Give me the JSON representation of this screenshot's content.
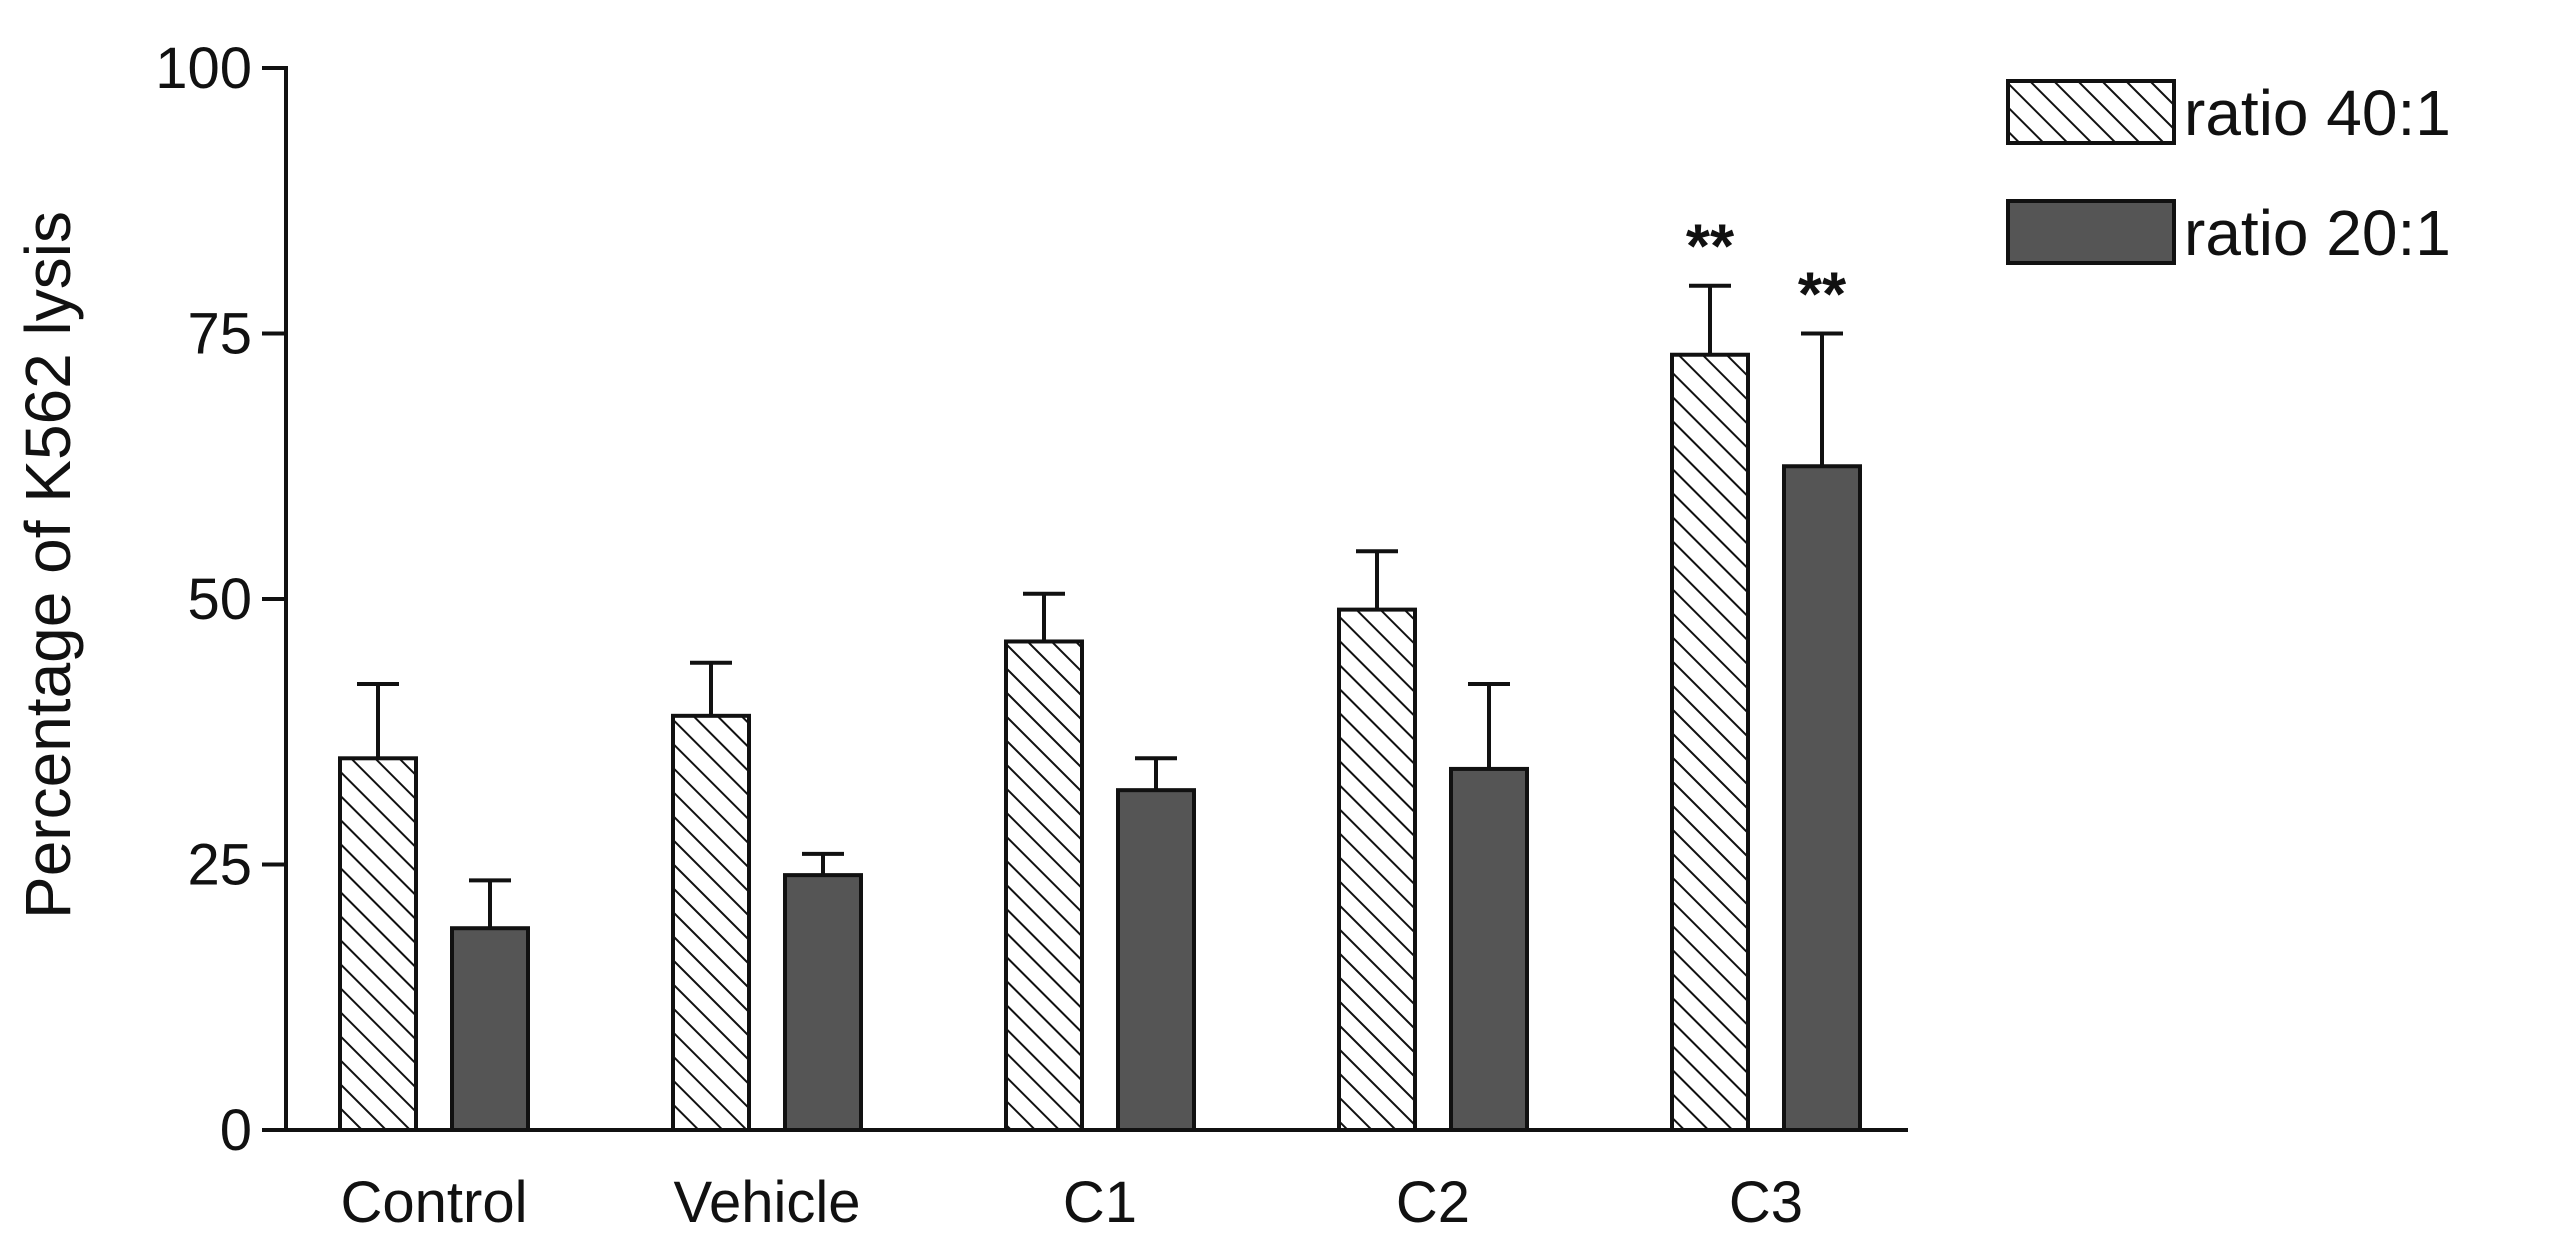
{
  "chart_data": {
    "type": "bar",
    "categories": [
      "Control",
      "Vehicle",
      "C1",
      "C2",
      "C3"
    ],
    "series": [
      {
        "name": "ratio 40:1",
        "pattern": "hatched",
        "color": "#ffffff",
        "values": [
          35,
          39,
          46,
          49,
          73
        ],
        "errors": [
          7,
          5,
          4.5,
          5.5,
          6.5
        ],
        "significance": [
          "",
          "",
          "",
          "",
          "**"
        ]
      },
      {
        "name": "ratio 20:1",
        "pattern": "solid",
        "color": "#555555",
        "values": [
          19,
          24,
          32,
          34,
          62.5
        ],
        "errors": [
          4.5,
          2,
          3,
          8,
          12.5
        ],
        "significance": [
          "",
          "",
          "",
          "",
          "**"
        ]
      }
    ],
    "ylabel": "Percentage of K562 lysis",
    "xlabel": "",
    "title": "",
    "ylim": [
      0,
      100
    ],
    "yticks": [
      0,
      25,
      50,
      75,
      100
    ],
    "grid": false,
    "legend": "top-right"
  }
}
